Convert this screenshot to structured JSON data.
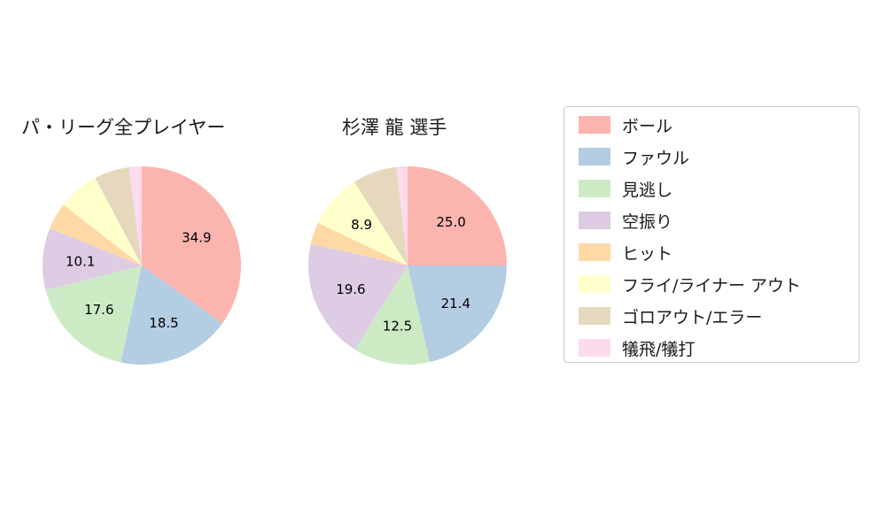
{
  "legend": {
    "items": [
      {
        "label": "ボール",
        "color": "#fbb4ae"
      },
      {
        "label": "ファウル",
        "color": "#b3cde3"
      },
      {
        "label": "見逃し",
        "color": "#ccebc5"
      },
      {
        "label": "空振り",
        "color": "#decbe4"
      },
      {
        "label": "ヒット",
        "color": "#fed9a6"
      },
      {
        "label": "フライ/ライナー アウト",
        "color": "#ffffcc"
      },
      {
        "label": "ゴロアウト/エラー",
        "color": "#e5d8bd"
      },
      {
        "label": "犠飛/犠打",
        "color": "#fddaec"
      }
    ]
  },
  "chart_data": [
    {
      "type": "pie",
      "title": "パ・リーグ全プレイヤー",
      "start_angle": "top",
      "direction": "clockwise",
      "unit": "percent",
      "slices": [
        {
          "label": "ボール",
          "value": 34.9,
          "pct_label": "34.9",
          "color": "#fbb4ae"
        },
        {
          "label": "ファウル",
          "value": 18.5,
          "pct_label": "18.5",
          "color": "#b3cde3"
        },
        {
          "label": "見逃し",
          "value": 17.6,
          "pct_label": "17.6",
          "color": "#ccebc5"
        },
        {
          "label": "空振り",
          "value": 10.1,
          "pct_label": "10.1",
          "color": "#decbe4"
        },
        {
          "label": "ヒット",
          "value": 4.4,
          "pct_label": null,
          "color": "#fed9a6"
        },
        {
          "label": "フライ/ライナー アウト",
          "value": 6.7,
          "pct_label": null,
          "color": "#ffffcc"
        },
        {
          "label": "ゴロアウト/エラー",
          "value": 5.7,
          "pct_label": null,
          "color": "#e5d8bd"
        },
        {
          "label": "犠飛/犠打",
          "value": 2.1,
          "pct_label": null,
          "color": "#fddaec"
        }
      ]
    },
    {
      "type": "pie",
      "title": "杉澤 龍 選手",
      "start_angle": "top",
      "direction": "clockwise",
      "unit": "percent",
      "slices": [
        {
          "label": "ボール",
          "value": 25.0,
          "pct_label": "25.0",
          "color": "#fbb4ae"
        },
        {
          "label": "ファウル",
          "value": 21.4,
          "pct_label": "21.4",
          "color": "#b3cde3"
        },
        {
          "label": "見逃し",
          "value": 12.5,
          "pct_label": "12.5",
          "color": "#ccebc5"
        },
        {
          "label": "空振り",
          "value": 19.6,
          "pct_label": "19.6",
          "color": "#decbe4"
        },
        {
          "label": "ヒット",
          "value": 3.6,
          "pct_label": null,
          "color": "#fed9a6"
        },
        {
          "label": "フライ/ライナー アウト",
          "value": 8.9,
          "pct_label": "8.9",
          "color": "#ffffcc"
        },
        {
          "label": "ゴロアウト/エラー",
          "value": 7.2,
          "pct_label": null,
          "color": "#e5d8bd"
        },
        {
          "label": "犠飛/犠打",
          "value": 1.8,
          "pct_label": null,
          "color": "#fddaec"
        }
      ]
    }
  ]
}
